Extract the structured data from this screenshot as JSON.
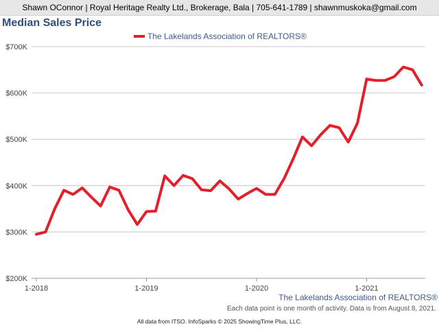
{
  "header": {
    "contact": "Shawn OConnor | Royal Heritage Realty Ltd., Brokerage, Bala | 705-641-1789 | shawnmuskoka@gmail.com"
  },
  "footer": {
    "source": "The Lakelands Association of REALTORS®",
    "note": "Each data point is one month of activity. Data is from August 8, 2021.",
    "credit": "All data from ITSO. InfoSparks © 2025 ShowingTime Plus, LLC."
  },
  "colors": {
    "series": "#e3202a",
    "title": "#2f4f7a",
    "grid": "#c8c8c8"
  },
  "chart_data": {
    "type": "line",
    "title": "Median Sales Price",
    "xlabel": "",
    "ylabel": "",
    "ylim": [
      200000,
      700000
    ],
    "yticks": [
      200000,
      300000,
      400000,
      500000,
      600000,
      700000
    ],
    "ytick_labels": [
      "$200K",
      "$300K",
      "$400K",
      "$500K",
      "$600K",
      "$700K"
    ],
    "xticks": [
      "2018-01",
      "2019-01",
      "2020-01",
      "2021-01"
    ],
    "xtick_labels": [
      "1-2018",
      "1-2019",
      "1-2020",
      "1-2021"
    ],
    "legend_position": "top-center",
    "grid": true,
    "x": [
      "2018-01",
      "2018-02",
      "2018-03",
      "2018-04",
      "2018-05",
      "2018-06",
      "2018-07",
      "2018-08",
      "2018-09",
      "2018-10",
      "2018-11",
      "2018-12",
      "2019-01",
      "2019-02",
      "2019-03",
      "2019-04",
      "2019-05",
      "2019-06",
      "2019-07",
      "2019-08",
      "2019-09",
      "2019-10",
      "2019-11",
      "2019-12",
      "2020-01",
      "2020-02",
      "2020-03",
      "2020-04",
      "2020-05",
      "2020-06",
      "2020-07",
      "2020-08",
      "2020-09",
      "2020-10",
      "2020-11",
      "2020-12",
      "2021-01",
      "2021-02",
      "2021-03",
      "2021-04",
      "2021-05",
      "2021-06",
      "2021-07"
    ],
    "series": [
      {
        "name": "The Lakelands Association of REALTORS®",
        "values": [
          295000,
          300000,
          350000,
          390000,
          381000,
          395000,
          375000,
          356000,
          397000,
          390000,
          348000,
          316000,
          344000,
          345000,
          421000,
          400000,
          422000,
          415000,
          391000,
          389000,
          410000,
          393000,
          371000,
          383000,
          394000,
          381000,
          381000,
          415000,
          458000,
          505000,
          486000,
          510000,
          530000,
          525000,
          494000,
          535000,
          630000,
          627000,
          627000,
          635000,
          656000,
          650000,
          617000
        ]
      }
    ]
  }
}
